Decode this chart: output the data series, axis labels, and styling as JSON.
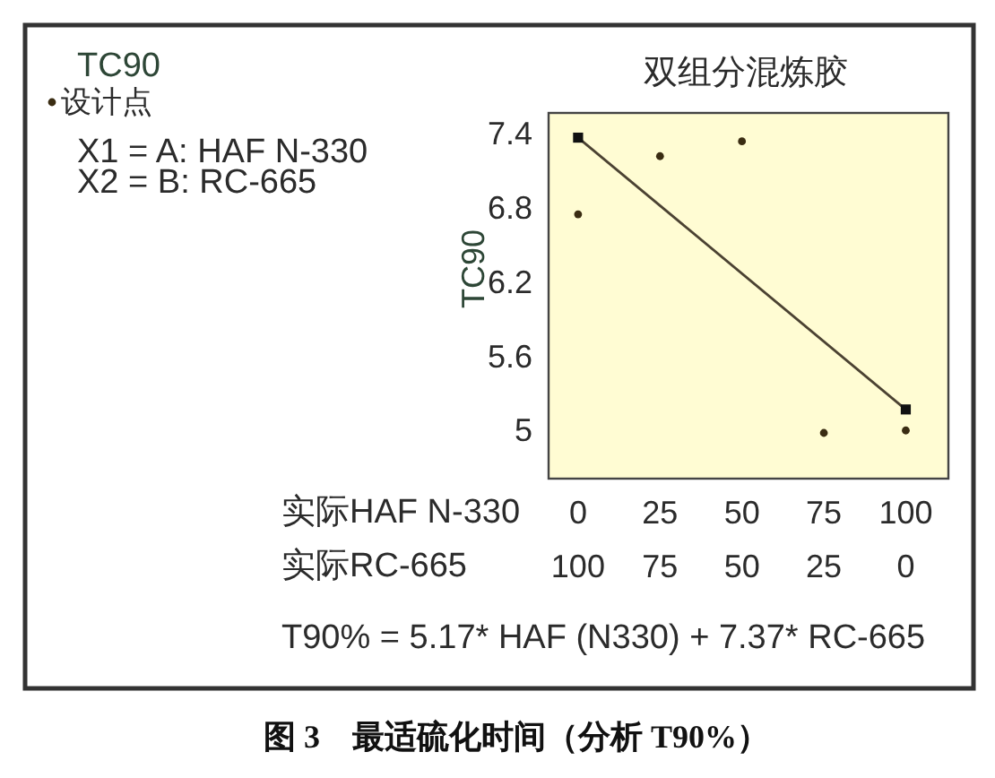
{
  "chart_data": {
    "type": "scatter",
    "title": "双组分混炼胶",
    "xlabel": "实际HAF N-330",
    "x2label": "实际RC-665",
    "ylabel": "TC90",
    "xlim": [
      -9,
      113
    ],
    "xticks": [
      0,
      25,
      50,
      75,
      100
    ],
    "x2lim": [
      109,
      -13
    ],
    "x2ticks": [
      100,
      75,
      50,
      25,
      0
    ],
    "ylim": [
      4.61,
      7.57
    ],
    "yticks": [
      5,
      5.6,
      6.2,
      6.8,
      7.4
    ],
    "series": [
      {
        "name": "设计点",
        "color": "#3a2c12",
        "marker": "circle",
        "x": [
          0,
          25,
          50,
          75,
          100
        ],
        "values": [
          6.75,
          7.22,
          7.34,
          4.98,
          5.0
        ]
      },
      {
        "type": "line",
        "color": "#4b4232",
        "marker": "square",
        "x": [
          0,
          100
        ],
        "values": [
          7.37,
          5.17
        ]
      }
    ],
    "legend": "left",
    "annotations": [
      "TC90",
      "X1 = A: HAF N-330",
      "X2 = B: RC-665",
      "T90% = 5.17* HAF (N330) + 7.37* RC-665",
      "图 3　最适硫化时间（分析 T90%）"
    ]
  }
}
